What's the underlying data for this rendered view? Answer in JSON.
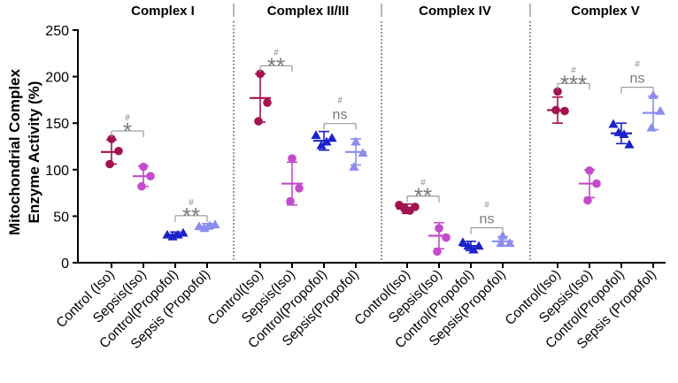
{
  "chart_data": {
    "type": "scatter",
    "ylabel_lines": [
      "Mitochondrial Complex",
      "Enzyme Activity (%)"
    ],
    "ylim": [
      0,
      250
    ],
    "yticks": [
      "0",
      "50",
      "100",
      "150",
      "200",
      "250"
    ],
    "ytick_values": [
      0,
      50,
      100,
      150,
      200,
      250
    ],
    "categories": [
      "Control (Iso)",
      "Sepsis(Iso)",
      "Control(Propofol)",
      "Sepsis (Propofol)"
    ],
    "group_colors": [
      "#a3124f",
      "#c44bcb",
      "#1c22c9",
      "#8b8cf0"
    ],
    "group_markers": [
      "circle",
      "circle",
      "triangle",
      "triangle"
    ],
    "panels": [
      {
        "title": "Complex I",
        "xticks": [
          "Control (Iso)",
          "Sepsis(Iso)",
          "Control(Propofol)",
          "Sepsis (Propofol)"
        ],
        "groups": [
          {
            "mean": 119,
            "sd": 13,
            "points": [
              133,
              120,
              106
            ]
          },
          {
            "mean": 93,
            "sd": 11,
            "points": [
              103,
              93,
              82
            ]
          },
          {
            "mean": 30,
            "sd": 3,
            "points": [
              30,
              28,
              30,
              32
            ]
          },
          {
            "mean": 39,
            "sd": 3,
            "points": [
              39,
              37,
              40,
              41
            ]
          }
        ],
        "comparisons": [
          {
            "from": 0,
            "to": 1,
            "label": "*",
            "hash": "#"
          },
          {
            "from": 2,
            "to": 3,
            "label": "**",
            "hash": "#"
          }
        ]
      },
      {
        "title": "Complex II/III",
        "xticks": [
          "Control(Iso)",
          "Sepsis(Iso)",
          "Control(Propofol)",
          "Sepsis(Propofol)"
        ],
        "groups": [
          {
            "mean": 177,
            "sd": 26,
            "points": [
              203,
              172,
              152
            ]
          },
          {
            "mean": 85,
            "sd": 23,
            "points": [
              112,
              80,
              66
            ]
          },
          {
            "mean": 131,
            "sd": 10,
            "points": [
              137,
              126,
              130,
              134
            ]
          },
          {
            "mean": 119,
            "sd": 14,
            "points": [
              130,
              118,
              103
            ]
          }
        ],
        "comparisons": [
          {
            "from": 0,
            "to": 1,
            "label": "**",
            "hash": "#"
          },
          {
            "from": 2,
            "to": 3,
            "label": "ns",
            "hash": "#"
          }
        ]
      },
      {
        "title": "Complex IV",
        "xticks": [
          "Control(Iso)",
          "Sepsis(Iso)",
          "Control(Propofol)",
          "Sepsis(Propofol)"
        ],
        "groups": [
          {
            "mean": 58,
            "sd": 5,
            "points": [
              62,
              58,
              56,
              60
            ]
          },
          {
            "mean": 29,
            "sd": 14,
            "points": [
              37,
              27,
              12
            ]
          },
          {
            "mean": 18,
            "sd": 5,
            "points": [
              22,
              18,
              14,
              18
            ]
          },
          {
            "mean": 23,
            "sd": 5,
            "points": [
              29,
              21,
              21
            ]
          }
        ],
        "comparisons": [
          {
            "from": 0,
            "to": 1,
            "label": "**",
            "hash": "#"
          },
          {
            "from": 2,
            "to": 3,
            "label": "ns",
            "hash": "#"
          }
        ]
      },
      {
        "title": "Complex V",
        "xticks": [
          "Control(Iso)",
          "Sepsis(Iso)",
          "Control(Propofol)",
          "Sepsis (Propofol)"
        ],
        "groups": [
          {
            "mean": 164,
            "sd": 14,
            "points": [
              184,
              163,
              164
            ]
          },
          {
            "mean": 85,
            "sd": 15,
            "points": [
              99,
              85,
              67
            ]
          },
          {
            "mean": 139,
            "sd": 11,
            "points": [
              149,
              140,
              138,
              127
            ]
          },
          {
            "mean": 161,
            "sd": 18,
            "points": [
              180,
              163,
              145
            ]
          }
        ],
        "comparisons": [
          {
            "from": 0,
            "to": 1,
            "label": "***",
            "hash": "#"
          },
          {
            "from": 2,
            "to": 3,
            "label": "ns",
            "hash": "#"
          }
        ]
      }
    ]
  }
}
